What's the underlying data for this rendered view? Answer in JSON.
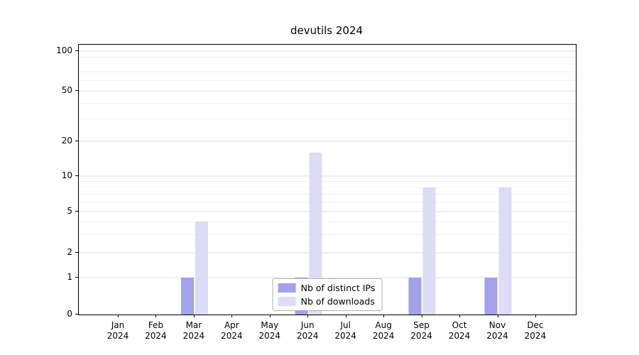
{
  "chart_data": {
    "type": "bar",
    "title": "devutils 2024",
    "categories": [
      "Jan",
      "Feb",
      "Mar",
      "Apr",
      "May",
      "Jun",
      "Jul",
      "Aug",
      "Sep",
      "Oct",
      "Nov",
      "Dec"
    ],
    "category_year": "2024",
    "series": [
      {
        "name": "Nb of distinct IPs",
        "color": "#a2a2ea",
        "values": [
          0,
          0,
          1,
          0,
          0,
          1,
          0,
          0,
          1,
          0,
          1,
          0
        ]
      },
      {
        "name": "Nb of downloads",
        "color": "#dcdcf7",
        "values": [
          0,
          0,
          4,
          0,
          0,
          16,
          0,
          0,
          8,
          0,
          8,
          0
        ]
      }
    ],
    "y_ticks": [
      0,
      1,
      2,
      5,
      10,
      20,
      50,
      100
    ],
    "y_minor_ticks": [
      3,
      4,
      6,
      7,
      8,
      9,
      30,
      40,
      60,
      70,
      80,
      90
    ],
    "ylim": [
      0,
      100
    ],
    "scale": "symlog",
    "grid": true,
    "legend_position": "lower center",
    "colors": {
      "grid_major": "#e2e2e2",
      "grid_minor": "#f0f0f0",
      "axis": "#000000",
      "background": "#ffffff"
    }
  }
}
